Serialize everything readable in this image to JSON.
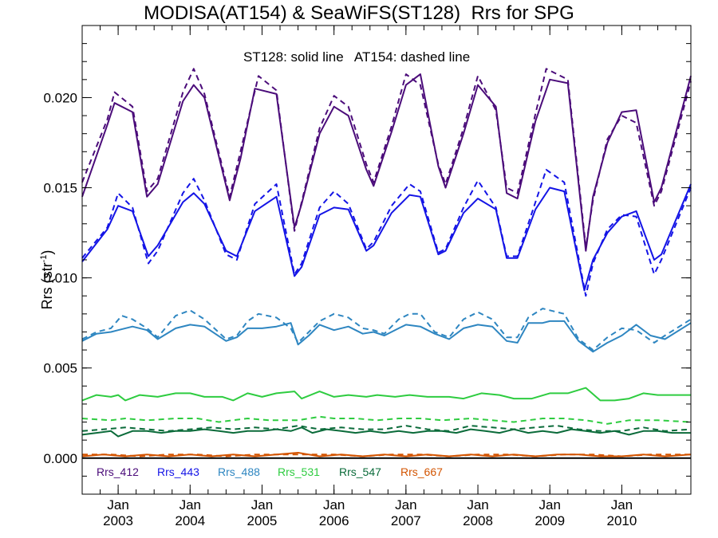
{
  "chart_data": {
    "type": "line",
    "title": "MODISA(AT154) & SeaWiFS(ST128)  Rrs for SPG",
    "annotation": "ST128: solid line   AT154: dashed line",
    "ylabel_main": "Rrs (str",
    "ylabel_sup": "-1",
    "ylim": [
      -0.002,
      0.024
    ],
    "yticks": [
      0.0,
      0.005,
      0.01,
      0.015,
      0.02
    ],
    "ytick_labels": [
      "0.000",
      "0.005",
      "0.010",
      "0.015",
      "0.020"
    ],
    "xlim": [
      2002.5,
      2010.96
    ],
    "xticks": [
      {
        "x": 2003.0,
        "month": "Jan",
        "year": "2003"
      },
      {
        "x": 2004.0,
        "month": "Jan",
        "year": "2004"
      },
      {
        "x": 2005.0,
        "month": "Jan",
        "year": "2005"
      },
      {
        "x": 2006.0,
        "month": "Jan",
        "year": "2006"
      },
      {
        "x": 2007.0,
        "month": "Jan",
        "year": "2007"
      },
      {
        "x": 2008.0,
        "month": "Jan",
        "year": "2008"
      },
      {
        "x": 2009.0,
        "month": "Jan",
        "year": "2009"
      },
      {
        "x": 2010.0,
        "month": "Jan",
        "year": "2010"
      }
    ],
    "zero_line": 0.0,
    "grid": false,
    "legend_position": "bottom-left",
    "series": [
      {
        "name": "Rrs_412",
        "color": "#4b0c7a",
        "style": "solid",
        "x": [
          2002.5,
          2002.85,
          2002.95,
          2003.2,
          2003.4,
          2003.55,
          2003.9,
          2004.05,
          2004.2,
          2004.55,
          2004.7,
          2004.9,
          2005.2,
          2005.45,
          2005.55,
          2005.8,
          2006.0,
          2006.2,
          2006.45,
          2006.55,
          2006.8,
          2007.0,
          2007.2,
          2007.45,
          2007.55,
          2007.8,
          2008.0,
          2008.25,
          2008.4,
          2008.55,
          2008.8,
          2009.0,
          2009.25,
          2009.5,
          2009.6,
          2009.8,
          2010.0,
          2010.2,
          2010.45,
          2010.55,
          2010.96
        ],
        "y": [
          0.0145,
          0.0185,
          0.0197,
          0.0192,
          0.0145,
          0.0152,
          0.0198,
          0.0207,
          0.02,
          0.0143,
          0.0166,
          0.0205,
          0.0202,
          0.0128,
          0.0141,
          0.018,
          0.0195,
          0.019,
          0.016,
          0.0151,
          0.0181,
          0.0207,
          0.0213,
          0.0162,
          0.015,
          0.018,
          0.0207,
          0.0195,
          0.0147,
          0.0144,
          0.0187,
          0.021,
          0.0208,
          0.0115,
          0.0145,
          0.0175,
          0.0192,
          0.0193,
          0.0142,
          0.015,
          0.0212
        ]
      },
      {
        "name": "Rrs_412",
        "color": "#4b0c7a",
        "style": "dashed",
        "x": [
          2002.5,
          2002.85,
          2002.95,
          2003.2,
          2003.4,
          2003.55,
          2003.9,
          2004.05,
          2004.2,
          2004.55,
          2004.7,
          2004.95,
          2005.2,
          2005.45,
          2005.55,
          2005.8,
          2006.0,
          2006.2,
          2006.45,
          2006.55,
          2006.8,
          2007.0,
          2007.2,
          2007.45,
          2007.55,
          2007.8,
          2008.0,
          2008.25,
          2008.4,
          2008.55,
          2008.8,
          2008.95,
          2009.25,
          2009.5,
          2009.6,
          2009.8,
          2010.0,
          2010.2,
          2010.45,
          2010.55,
          2010.96
        ],
        "y": [
          0.0153,
          0.0188,
          0.0203,
          0.0195,
          0.0148,
          0.0155,
          0.0203,
          0.0216,
          0.0202,
          0.0145,
          0.017,
          0.0212,
          0.0204,
          0.0126,
          0.0142,
          0.0183,
          0.0201,
          0.0195,
          0.0163,
          0.0153,
          0.0184,
          0.0213,
          0.0207,
          0.0163,
          0.0152,
          0.0183,
          0.0212,
          0.0193,
          0.015,
          0.0147,
          0.0191,
          0.0216,
          0.021,
          0.0117,
          0.0143,
          0.0177,
          0.019,
          0.0186,
          0.014,
          0.0148,
          0.0209
        ]
      },
      {
        "name": "Rrs_443",
        "color": "#1414e6",
        "style": "solid",
        "x": [
          2002.5,
          2002.85,
          2003.0,
          2003.2,
          2003.42,
          2003.55,
          2003.9,
          2004.05,
          2004.2,
          2004.5,
          2004.65,
          2004.9,
          2005.2,
          2005.45,
          2005.55,
          2005.8,
          2006.0,
          2006.2,
          2006.45,
          2006.55,
          2006.8,
          2007.05,
          2007.2,
          2007.45,
          2007.55,
          2007.8,
          2008.0,
          2008.25,
          2008.4,
          2008.55,
          2008.8,
          2009.0,
          2009.2,
          2009.48,
          2009.6,
          2009.8,
          2010.0,
          2010.2,
          2010.45,
          2010.55,
          2010.96
        ],
        "y": [
          0.0109,
          0.0127,
          0.014,
          0.0137,
          0.0112,
          0.0118,
          0.0142,
          0.0147,
          0.0141,
          0.0115,
          0.0112,
          0.0137,
          0.0145,
          0.0101,
          0.0106,
          0.0135,
          0.0139,
          0.0138,
          0.0115,
          0.0118,
          0.0136,
          0.0146,
          0.0145,
          0.0113,
          0.0115,
          0.0136,
          0.0144,
          0.0138,
          0.0111,
          0.0111,
          0.0138,
          0.015,
          0.0148,
          0.0093,
          0.011,
          0.0125,
          0.0134,
          0.0137,
          0.011,
          0.0113,
          0.0152
        ]
      },
      {
        "name": "Rrs_443",
        "color": "#1414e6",
        "style": "dashed",
        "x": [
          2002.5,
          2002.85,
          2003.0,
          2003.2,
          2003.42,
          2003.55,
          2003.9,
          2004.05,
          2004.2,
          2004.5,
          2004.65,
          2004.9,
          2005.2,
          2005.45,
          2005.55,
          2005.8,
          2006.0,
          2006.2,
          2006.45,
          2006.55,
          2006.8,
          2007.05,
          2007.2,
          2007.45,
          2007.55,
          2007.8,
          2008.0,
          2008.25,
          2008.4,
          2008.55,
          2008.8,
          2008.95,
          2009.2,
          2009.5,
          2009.6,
          2009.8,
          2010.0,
          2010.2,
          2010.45,
          2010.55,
          2010.96
        ],
        "y": [
          0.0111,
          0.0128,
          0.0147,
          0.0139,
          0.0108,
          0.0115,
          0.0147,
          0.0155,
          0.0143,
          0.0113,
          0.011,
          0.0141,
          0.0152,
          0.0102,
          0.0108,
          0.0139,
          0.0148,
          0.0141,
          0.0116,
          0.012,
          0.014,
          0.0152,
          0.0148,
          0.0114,
          0.0116,
          0.0139,
          0.0154,
          0.0139,
          0.0112,
          0.0112,
          0.0142,
          0.016,
          0.0153,
          0.009,
          0.0108,
          0.0127,
          0.0135,
          0.0134,
          0.0102,
          0.011,
          0.015
        ]
      },
      {
        "name": "Rrs_488",
        "color": "#2e86c1",
        "style": "solid",
        "x": [
          2002.5,
          2002.7,
          2002.9,
          2003.0,
          2003.2,
          2003.4,
          2003.55,
          2003.8,
          2004.0,
          2004.2,
          2004.5,
          2004.65,
          2004.8,
          2005.0,
          2005.2,
          2005.4,
          2005.5,
          2005.65,
          2005.8,
          2006.0,
          2006.2,
          2006.4,
          2006.55,
          2006.7,
          2006.9,
          2007.0,
          2007.2,
          2007.4,
          2007.6,
          2007.8,
          2008.0,
          2008.2,
          2008.4,
          2008.55,
          2008.7,
          2008.9,
          2009.0,
          2009.2,
          2009.4,
          2009.6,
          2009.8,
          2010.0,
          2010.2,
          2010.4,
          2010.6,
          2010.96
        ],
        "y": [
          0.0065,
          0.0069,
          0.007,
          0.0071,
          0.0073,
          0.0071,
          0.0066,
          0.0072,
          0.0074,
          0.0073,
          0.0065,
          0.0067,
          0.0072,
          0.0072,
          0.0073,
          0.0075,
          0.0063,
          0.0068,
          0.0074,
          0.0071,
          0.0073,
          0.0069,
          0.007,
          0.0068,
          0.0072,
          0.0074,
          0.0073,
          0.0069,
          0.0066,
          0.0072,
          0.0074,
          0.0073,
          0.0065,
          0.0064,
          0.0075,
          0.0075,
          0.0076,
          0.0076,
          0.0065,
          0.0059,
          0.0064,
          0.0068,
          0.0074,
          0.0068,
          0.0066,
          0.0075
        ]
      },
      {
        "name": "Rrs_488",
        "color": "#2e86c1",
        "style": "dashed",
        "x": [
          2002.5,
          2002.7,
          2002.9,
          2003.05,
          2003.2,
          2003.4,
          2003.55,
          2003.8,
          2004.0,
          2004.2,
          2004.5,
          2004.65,
          2004.8,
          2004.95,
          2005.2,
          2005.4,
          2005.5,
          2005.65,
          2005.8,
          2006.0,
          2006.2,
          2006.4,
          2006.55,
          2006.7,
          2006.9,
          2007.05,
          2007.2,
          2007.4,
          2007.6,
          2007.8,
          2008.0,
          2008.2,
          2008.4,
          2008.55,
          2008.7,
          2008.9,
          2009.0,
          2009.2,
          2009.4,
          2009.6,
          2009.8,
          2010.0,
          2010.2,
          2010.45,
          2010.6,
          2010.96
        ],
        "y": [
          0.0066,
          0.007,
          0.0072,
          0.0079,
          0.0077,
          0.0072,
          0.0067,
          0.0079,
          0.0082,
          0.0077,
          0.0066,
          0.0068,
          0.0076,
          0.008,
          0.0078,
          0.0072,
          0.0064,
          0.007,
          0.0076,
          0.008,
          0.0078,
          0.0072,
          0.0071,
          0.0069,
          0.0077,
          0.008,
          0.008,
          0.007,
          0.0067,
          0.0077,
          0.0081,
          0.0077,
          0.0067,
          0.0067,
          0.0078,
          0.0083,
          0.0082,
          0.008,
          0.0066,
          0.006,
          0.0067,
          0.0072,
          0.0071,
          0.0064,
          0.0068,
          0.0077
        ]
      },
      {
        "name": "Rrs_531",
        "color": "#2ecc40",
        "style": "solid",
        "x": [
          2002.5,
          2002.7,
          2002.9,
          2003.0,
          2003.1,
          2003.3,
          2003.55,
          2003.8,
          2004.0,
          2004.2,
          2004.45,
          2004.6,
          2004.8,
          2005.0,
          2005.2,
          2005.45,
          2005.55,
          2005.8,
          2006.0,
          2006.2,
          2006.45,
          2006.6,
          2006.85,
          2007.05,
          2007.3,
          2007.6,
          2007.8,
          2008.05,
          2008.3,
          2008.5,
          2008.75,
          2009.0,
          2009.25,
          2009.5,
          2009.7,
          2009.9,
          2010.1,
          2010.3,
          2010.5,
          2010.7,
          2010.96
        ],
        "y": [
          0.0032,
          0.0035,
          0.0034,
          0.0035,
          0.0032,
          0.0035,
          0.0034,
          0.0036,
          0.0036,
          0.0034,
          0.0034,
          0.0032,
          0.0036,
          0.0034,
          0.0036,
          0.0037,
          0.0033,
          0.0037,
          0.0034,
          0.0035,
          0.0034,
          0.0035,
          0.0034,
          0.0035,
          0.0034,
          0.0034,
          0.0033,
          0.0036,
          0.0035,
          0.0033,
          0.0033,
          0.0036,
          0.0036,
          0.0039,
          0.0032,
          0.0032,
          0.0033,
          0.0036,
          0.0035,
          0.0035,
          0.0035
        ]
      },
      {
        "name": "Rrs_531",
        "color": "#2ecc40",
        "style": "dashed",
        "x": [
          2002.5,
          2002.9,
          2003.1,
          2003.4,
          2003.8,
          2004.1,
          2004.4,
          2004.8,
          2005.1,
          2005.5,
          2005.8,
          2006.0,
          2006.3,
          2006.6,
          2006.9,
          2007.2,
          2007.5,
          2007.9,
          2008.2,
          2008.5,
          2008.9,
          2009.2,
          2009.5,
          2009.8,
          2010.1,
          2010.5,
          2010.96
        ],
        "y": [
          0.0022,
          0.0021,
          0.0022,
          0.0021,
          0.0022,
          0.0022,
          0.002,
          0.0022,
          0.0021,
          0.0021,
          0.0023,
          0.0022,
          0.0022,
          0.0021,
          0.0022,
          0.0022,
          0.0021,
          0.0022,
          0.0021,
          0.002,
          0.0022,
          0.0022,
          0.0021,
          0.0019,
          0.0021,
          0.0021,
          0.002
        ]
      },
      {
        "name": "Rrs_547",
        "color": "#0b6b3a",
        "style": "solid",
        "x": [
          2002.5,
          2002.7,
          2002.9,
          2003.0,
          2003.2,
          2003.4,
          2003.6,
          2003.8,
          2004.0,
          2004.2,
          2004.4,
          2004.6,
          2004.8,
          2005.0,
          2005.2,
          2005.4,
          2005.55,
          2005.7,
          2005.9,
          2006.1,
          2006.3,
          2006.5,
          2006.7,
          2006.9,
          2007.1,
          2007.3,
          2007.5,
          2007.7,
          2007.9,
          2008.1,
          2008.3,
          2008.5,
          2008.7,
          2008.9,
          2009.1,
          2009.3,
          2009.5,
          2009.7,
          2009.9,
          2010.1,
          2010.3,
          2010.5,
          2010.7,
          2010.96
        ],
        "y": [
          0.0013,
          0.0014,
          0.0015,
          0.0012,
          0.0015,
          0.0015,
          0.0014,
          0.0015,
          0.0015,
          0.0016,
          0.0015,
          0.0014,
          0.0015,
          0.0015,
          0.0016,
          0.0015,
          0.0017,
          0.0014,
          0.0016,
          0.0015,
          0.0014,
          0.0015,
          0.0014,
          0.0015,
          0.0014,
          0.0015,
          0.0015,
          0.0014,
          0.0016,
          0.0015,
          0.0014,
          0.0016,
          0.0014,
          0.0015,
          0.0014,
          0.0016,
          0.0015,
          0.0014,
          0.0015,
          0.0013,
          0.0015,
          0.0015,
          0.0014,
          0.0014
        ]
      },
      {
        "name": "Rrs_547",
        "color": "#0b6b3a",
        "style": "dashed",
        "x": [
          2002.5,
          2002.8,
          2003.1,
          2003.4,
          2003.7,
          2004.0,
          2004.3,
          2004.6,
          2004.9,
          2005.2,
          2005.5,
          2005.8,
          2006.1,
          2006.4,
          2006.7,
          2007.0,
          2007.3,
          2007.6,
          2007.9,
          2008.2,
          2008.5,
          2008.8,
          2009.1,
          2009.4,
          2009.7,
          2010.0,
          2010.3,
          2010.6,
          2010.96
        ],
        "y": [
          0.0015,
          0.0016,
          0.0017,
          0.0016,
          0.0015,
          0.0016,
          0.0017,
          0.0016,
          0.0017,
          0.0016,
          0.0018,
          0.0016,
          0.0017,
          0.0016,
          0.0016,
          0.0018,
          0.0016,
          0.0015,
          0.0018,
          0.0017,
          0.0016,
          0.0017,
          0.0018,
          0.0016,
          0.0015,
          0.0015,
          0.0017,
          0.0015,
          0.0016
        ]
      },
      {
        "name": "Rrs_667",
        "color": "#d35400",
        "style": "solid",
        "x": [
          2002.5,
          2002.8,
          2003.1,
          2003.4,
          2003.7,
          2004.0,
          2004.3,
          2004.6,
          2004.9,
          2005.2,
          2005.5,
          2005.8,
          2006.1,
          2006.4,
          2006.7,
          2007.0,
          2007.3,
          2007.6,
          2007.9,
          2008.2,
          2008.5,
          2008.8,
          2009.1,
          2009.4,
          2009.7,
          2010.0,
          2010.3,
          2010.6,
          2010.96
        ],
        "y": [
          0.0001,
          0.0002,
          0.0001,
          0.0002,
          0.0001,
          0.0002,
          0.0001,
          0.0002,
          0.0001,
          0.0002,
          0.0003,
          0.0001,
          0.0002,
          0.0001,
          0.0002,
          0.0001,
          0.0002,
          0.0001,
          0.0002,
          0.0001,
          0.0002,
          0.0001,
          0.0002,
          0.0002,
          0.0001,
          0.0001,
          0.0002,
          0.0001,
          0.0002
        ]
      },
      {
        "name": "Rrs_667",
        "color": "#d35400",
        "style": "dashed",
        "x": [
          2002.5,
          2002.9,
          2003.3,
          2003.7,
          2004.1,
          2004.5,
          2004.9,
          2005.3,
          2005.6,
          2006.0,
          2006.4,
          2006.8,
          2007.2,
          2007.6,
          2008.0,
          2008.4,
          2008.8,
          2009.2,
          2009.6,
          2010.0,
          2010.4,
          2010.96
        ],
        "y": [
          0.0002,
          0.0002,
          0.0001,
          0.0002,
          0.0002,
          0.0001,
          0.0002,
          0.0002,
          0.0002,
          0.0002,
          0.0001,
          0.0002,
          0.0002,
          0.0001,
          0.0002,
          0.0002,
          0.0001,
          0.0002,
          0.0002,
          0.0001,
          0.0002,
          0.0002
        ]
      }
    ],
    "legend": [
      {
        "label": "Rrs_412",
        "color": "#4b0c7a"
      },
      {
        "label": "Rrs_443",
        "color": "#1414e6"
      },
      {
        "label": "Rrs_488",
        "color": "#2e86c1"
      },
      {
        "label": "Rrs_531",
        "color": "#2ecc40"
      },
      {
        "label": "Rrs_547",
        "color": "#0b6b3a"
      },
      {
        "label": "Rrs_667",
        "color": "#d35400"
      }
    ]
  }
}
